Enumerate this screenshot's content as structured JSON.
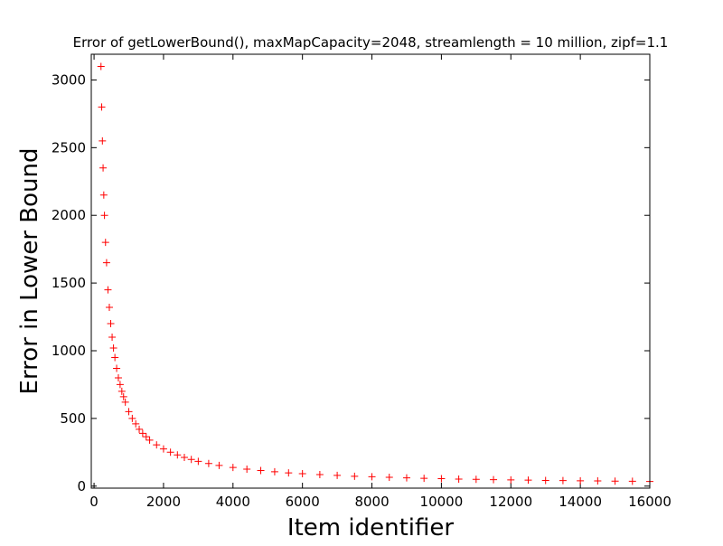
{
  "chart_data": {
    "type": "scatter",
    "title": "Error of getLowerBound(), maxMapCapacity=2048, streamlength = 10 million, zipf=1.1",
    "xlabel": "Item identifier",
    "ylabel": "Error in Lower Bound",
    "marker": "+",
    "series": [
      {
        "name": "error",
        "color": "#ff0000",
        "x": [
          200,
          220,
          240,
          260,
          280,
          300,
          330,
          360,
          400,
          440,
          480,
          520,
          560,
          600,
          650,
          700,
          750,
          800,
          850,
          900,
          1000,
          1100,
          1200,
          1300,
          1400,
          1500,
          1600,
          1800,
          2000,
          2200,
          2400,
          2600,
          2800,
          3000,
          3300,
          3600,
          4000,
          4400,
          4800,
          5200,
          5600,
          6000,
          6500,
          7000,
          7500,
          8000,
          8500,
          9000,
          9500,
          10000,
          10500,
          11000,
          11500,
          12000,
          12500,
          13000,
          13500,
          14000,
          14500,
          15000,
          15500,
          16000
        ],
        "values": [
          3100,
          2800,
          2550,
          2350,
          2150,
          2000,
          1800,
          1650,
          1450,
          1320,
          1200,
          1100,
          1020,
          950,
          870,
          800,
          750,
          700,
          660,
          620,
          550,
          500,
          460,
          420,
          390,
          365,
          340,
          305,
          275,
          250,
          230,
          212,
          197,
          183,
          167,
          153,
          138,
          125,
          115,
          106,
          98,
          92,
          85,
          79,
          73,
          69,
          65,
          61,
          58,
          55,
          52,
          50,
          48,
          46,
          44,
          42,
          41,
          39,
          38,
          37,
          36,
          34
        ]
      }
    ],
    "xlim": [
      -80,
      16000
    ],
    "ylim": [
      -15,
      3190
    ],
    "xticks": [
      0,
      2000,
      4000,
      6000,
      8000,
      10000,
      12000,
      14000,
      16000
    ],
    "yticks": [
      0,
      500,
      1000,
      1500,
      2000,
      2500,
      3000
    ]
  }
}
